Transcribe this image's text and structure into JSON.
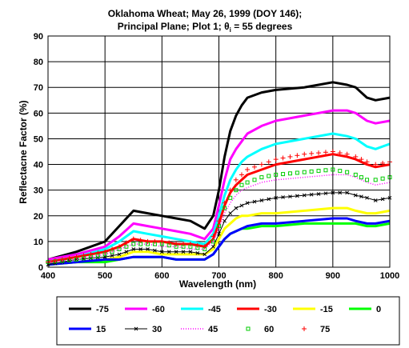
{
  "chart_data": {
    "type": "line",
    "title_line1": "Oklahoma Wheat;  May 26, 1999 (DOY 146);",
    "title_line2_prefix": "Principal Plane; Plot 1; ",
    "title_line2_symbol": "θ",
    "title_line2_subscript": "i",
    "title_line2_suffix": " = 55 degrees",
    "xlabel": "Wavelength (nm)",
    "ylabel": "Reflectacne Factor (%)",
    "xlim": [
      400,
      1000
    ],
    "ylim": [
      0,
      90
    ],
    "x_ticks": [
      400,
      500,
      600,
      700,
      800,
      900,
      1000
    ],
    "y_ticks": [
      0,
      10,
      20,
      30,
      40,
      50,
      60,
      70,
      80,
      90
    ],
    "grid": true,
    "legend_position": "bottom",
    "x": [
      400,
      450,
      500,
      525,
      550,
      575,
      600,
      625,
      650,
      675,
      690,
      700,
      710,
      720,
      730,
      740,
      750,
      775,
      800,
      850,
      900,
      925,
      940,
      960,
      975,
      1000
    ],
    "series": [
      {
        "name": "-75",
        "color": "#000000",
        "style": "line",
        "width": 3,
        "values": [
          3,
          6,
          10,
          16,
          22,
          21,
          20,
          19,
          18,
          15,
          20,
          30,
          43,
          53,
          59,
          63,
          66,
          68,
          69,
          70,
          72,
          71,
          70,
          66,
          65,
          66
        ]
      },
      {
        "name": "-60",
        "color": "#ff00ff",
        "style": "line",
        "width": 3,
        "values": [
          3,
          5,
          8,
          12,
          17,
          16,
          15,
          14,
          13,
          11,
          15,
          24,
          34,
          42,
          46,
          49,
          52,
          55,
          57,
          59,
          61,
          61,
          60,
          57,
          56,
          57
        ]
      },
      {
        "name": "-45",
        "color": "#00ffff",
        "style": "line",
        "width": 3,
        "values": [
          2,
          4,
          7,
          10,
          14,
          13,
          12,
          11,
          10,
          9,
          13,
          20,
          28,
          34,
          38,
          41,
          43,
          46,
          48,
          50,
          52,
          51,
          50,
          47,
          46,
          48
        ]
      },
      {
        "name": "-30",
        "color": "#ff0000",
        "style": "line",
        "width": 3,
        "values": [
          2,
          4,
          6,
          8,
          11,
          10,
          10,
          9,
          9,
          8,
          11,
          17,
          24,
          29,
          32,
          34,
          36,
          38,
          40,
          42,
          44,
          43,
          42,
          40,
          39,
          40
        ]
      },
      {
        "name": "-15",
        "color": "#ffff00",
        "style": "line",
        "width": 3,
        "values": [
          1,
          2,
          3,
          4,
          6,
          6,
          5,
          5,
          5,
          5,
          7,
          11,
          15,
          17,
          19,
          20,
          20,
          21,
          21,
          22,
          23,
          23,
          22,
          21,
          21,
          22
        ]
      },
      {
        "name": "0",
        "color": "#00ff00",
        "style": "line",
        "width": 3,
        "values": [
          1,
          2,
          2,
          3,
          4,
          4,
          4,
          3,
          3,
          3,
          5,
          8,
          11,
          13,
          14,
          15,
          15,
          16,
          16,
          17,
          17,
          17,
          17,
          16,
          16,
          17
        ]
      },
      {
        "name": "15",
        "color": "#0000ff",
        "style": "line",
        "width": 3,
        "values": [
          1,
          2,
          3,
          3,
          4,
          4,
          4,
          3,
          3,
          3,
          5,
          8,
          11,
          13,
          14,
          15,
          16,
          17,
          17,
          18,
          19,
          19,
          18,
          17,
          17,
          18
        ]
      },
      {
        "name": "30",
        "color": "#000000",
        "style": "line-x",
        "width": 1,
        "values": [
          1,
          3,
          4,
          5,
          7,
          7,
          6,
          6,
          6,
          5,
          8,
          13,
          18,
          21,
          23,
          24,
          25,
          26,
          27,
          28,
          29,
          29,
          28,
          27,
          26,
          27
        ]
      },
      {
        "name": "45",
        "color": "#ff00ff",
        "style": "dotted",
        "width": 1.5,
        "values": [
          2,
          3,
          5,
          7,
          9,
          9,
          8,
          8,
          7,
          7,
          10,
          15,
          21,
          25,
          28,
          30,
          31,
          33,
          34,
          35,
          36,
          36,
          35,
          33,
          32,
          33
        ]
      },
      {
        "name": "60",
        "color": "#00cc00",
        "style": "square",
        "width": 1,
        "values": [
          2,
          3,
          5,
          7,
          9,
          9,
          9,
          8,
          8,
          7,
          10,
          16,
          23,
          27,
          30,
          32,
          33,
          35,
          36,
          37,
          38,
          37,
          36,
          34,
          34,
          35
        ]
      },
      {
        "name": "75",
        "color": "#ff0000",
        "style": "plus",
        "width": 1,
        "values": [
          2,
          4,
          6,
          8,
          11,
          10,
          10,
          9,
          9,
          8,
          12,
          18,
          25,
          30,
          34,
          36,
          38,
          40,
          42,
          44,
          45,
          44,
          43,
          41,
          40,
          41
        ]
      }
    ]
  }
}
